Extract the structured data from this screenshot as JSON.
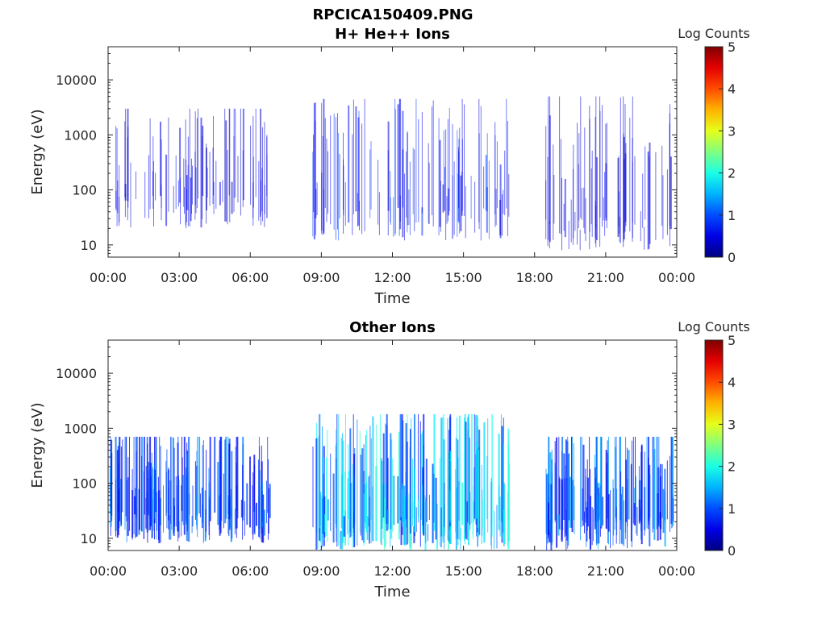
{
  "figure_title": "RPCICA150409.PNG",
  "colorbar": {
    "label": "Log Counts",
    "range": [
      0,
      5
    ],
    "ticks": [
      "0",
      "1",
      "2",
      "3",
      "4",
      "5"
    ],
    "colormap": "jet"
  },
  "chart_data": [
    {
      "type": "heatmap",
      "title": "H+ He++ Ions",
      "xlabel": "Time",
      "ylabel": "Energy (eV)",
      "xticks": [
        "00:00",
        "03:00",
        "06:00",
        "09:00",
        "12:00",
        "15:00",
        "18:00",
        "21:00",
        "00:00"
      ],
      "x_range_hours": [
        0,
        24
      ],
      "yticks": [
        "10",
        "100",
        "1000",
        "10000"
      ],
      "ylim": [
        6,
        40000
      ],
      "yscale": "log",
      "clim": [
        0,
        5
      ],
      "data_gaps_hours": [
        [
          6.9,
          8.6
        ],
        [
          16.9,
          18.4
        ]
      ],
      "bursts": [
        {
          "start": 0.3,
          "end": 6.8,
          "emin": 20,
          "emax": 3000,
          "level": 0.5
        },
        {
          "start": 8.6,
          "end": 16.9,
          "emin": 12,
          "emax": 4500,
          "level": 0.7
        },
        {
          "start": 18.4,
          "end": 23.9,
          "emin": 8,
          "emax": 5000,
          "level": 0.5
        }
      ]
    },
    {
      "type": "heatmap",
      "title": "Other Ions",
      "xlabel": "Time",
      "ylabel": "Energy (eV)",
      "xticks": [
        "00:00",
        "03:00",
        "06:00",
        "09:00",
        "12:00",
        "15:00",
        "18:00",
        "21:00",
        "00:00"
      ],
      "x_range_hours": [
        0,
        24
      ],
      "yticks": [
        "10",
        "100",
        "1000",
        "10000"
      ],
      "ylim": [
        6,
        40000
      ],
      "yscale": "log",
      "clim": [
        0,
        5
      ],
      "data_gaps_hours": [
        [
          6.9,
          8.6
        ],
        [
          16.9,
          18.4
        ]
      ],
      "bursts": [
        {
          "start": 0.0,
          "end": 6.8,
          "emin": 8,
          "emax": 700,
          "level": 1.0
        },
        {
          "start": 8.6,
          "end": 16.9,
          "emin": 6,
          "emax": 1800,
          "level": 1.6
        },
        {
          "start": 18.4,
          "end": 23.9,
          "emin": 6,
          "emax": 700,
          "level": 1.1
        }
      ]
    }
  ]
}
